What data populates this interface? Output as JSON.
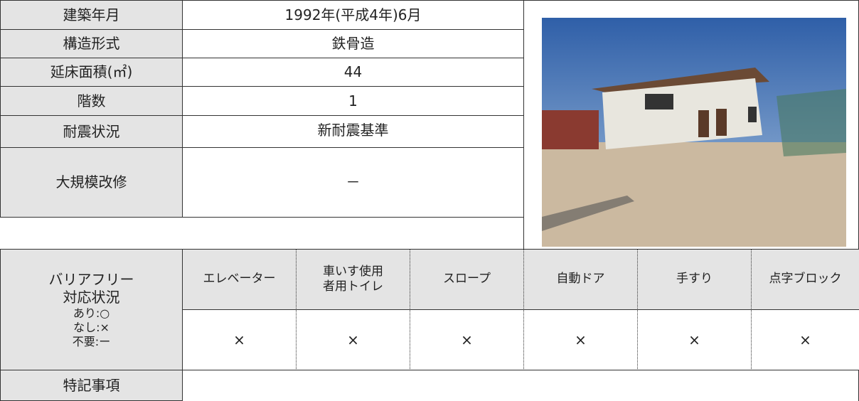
{
  "table": {
    "rows": [
      {
        "label": "建築年月",
        "value": "1992年(平成4年)6月"
      },
      {
        "label": "構造形式",
        "value": "鉄骨造"
      },
      {
        "label": "延床面積(㎡)",
        "value": "44"
      },
      {
        "label": "階数",
        "value": "1"
      },
      {
        "label": "耐震状況",
        "value": "新耐震基準"
      },
      {
        "label": "大規模改修",
        "value": "－"
      }
    ],
    "barrier_free": {
      "label": [
        "バリアフリー",
        "対応状況"
      ],
      "legend": [
        "あり:○",
        "なし:×",
        "不要:ー"
      ],
      "items": [
        {
          "name": [
            "エレベーター"
          ],
          "status": "×"
        },
        {
          "name": [
            "車いす使用",
            "者用トイレ"
          ],
          "status": "×"
        },
        {
          "name": [
            "スロープ"
          ],
          "status": "×"
        },
        {
          "name": [
            "自動ドア"
          ],
          "status": "×"
        },
        {
          "name": [
            "手すり"
          ],
          "status": "×"
        },
        {
          "name": [
            "点字ブロック"
          ],
          "status": "×"
        }
      ]
    },
    "notes_label": "特記事項"
  }
}
